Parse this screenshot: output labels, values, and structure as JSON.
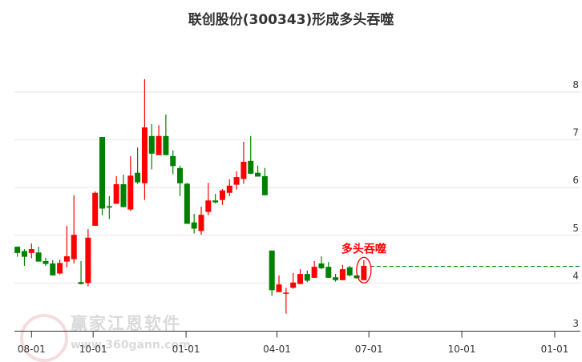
{
  "title": "联创股份(300343)形成多头吞噬",
  "annotation": "多头吞噬",
  "watermark": {
    "name": "赢家江恩软件",
    "url": "www.360gann.com",
    "seal": "江赢恩家"
  },
  "colors": {
    "up": "#ff0000",
    "down": "#008000",
    "grid": "#e6e6e6",
    "axis": "#333333",
    "signal_line": "#008000",
    "annotation": "#ff0000"
  },
  "chart_data": {
    "type": "candlestick",
    "title": "联创股份(300343)形成多头吞噬",
    "interval": "weekly",
    "y_axis": {
      "position": "right",
      "ticks": [
        3,
        4,
        5,
        6,
        7,
        8
      ],
      "ylim": [
        3,
        8.4
      ]
    },
    "x_ticks": [
      "08-01",
      "10-01",
      "01-01",
      "04-01",
      "07-01",
      "10-01",
      "01-01"
    ],
    "grid": true,
    "signal": {
      "label": "多头吞噬",
      "date": "06-26",
      "level": 4.35,
      "marker": "ellipse",
      "line": "dashed"
    },
    "candles": [
      [
        "07-18",
        4.76,
        4.77,
        4.55,
        4.63
      ],
      [
        "07-25",
        4.67,
        4.71,
        4.36,
        4.55
      ],
      [
        "08-01",
        4.63,
        4.83,
        4.52,
        4.71
      ],
      [
        "08-08",
        4.64,
        4.76,
        4.45,
        4.45
      ],
      [
        "08-15",
        4.46,
        4.53,
        4.36,
        4.4
      ],
      [
        "08-22",
        4.41,
        4.48,
        4.16,
        4.16
      ],
      [
        "08-29",
        4.2,
        4.49,
        4.18,
        4.42
      ],
      [
        "09-05",
        4.45,
        5.2,
        4.33,
        4.56
      ],
      [
        "09-12",
        4.5,
        5.84,
        4.41,
        5.01
      ],
      [
        "09-19",
        4.02,
        4.46,
        3.97,
        3.98
      ],
      [
        "09-26",
        4.0,
        5.13,
        3.93,
        4.95
      ],
      [
        "10-03",
        5.2,
        5.92,
        5.2,
        5.89
      ],
      [
        "10-10",
        7.06,
        7.06,
        5.42,
        5.56
      ],
      [
        "10-17",
        5.61,
        5.82,
        5.34,
        5.58
      ],
      [
        "10-24",
        5.66,
        6.24,
        5.66,
        6.07
      ],
      [
        "10-31",
        6.07,
        6.27,
        5.59,
        5.59
      ],
      [
        "11-07",
        5.54,
        6.66,
        5.51,
        6.25
      ],
      [
        "11-14",
        6.31,
        6.84,
        6.08,
        6.11
      ],
      [
        "11-21",
        6.09,
        8.27,
        5.74,
        7.26
      ],
      [
        "11-28",
        7.08,
        7.33,
        6.38,
        6.71
      ],
      [
        "12-05",
        6.68,
        7.31,
        6.68,
        7.08
      ],
      [
        "12-12",
        7.08,
        7.53,
        6.68,
        6.68
      ],
      [
        "12-19",
        6.66,
        6.78,
        6.28,
        6.45
      ],
      [
        "12-26",
        6.41,
        6.46,
        5.82,
        6.09
      ],
      [
        "01-02",
        6.08,
        6.1,
        5.24,
        5.24
      ],
      [
        "01-09",
        5.27,
        5.45,
        5.04,
        5.14
      ],
      [
        "01-16",
        5.09,
        5.6,
        5.01,
        5.43
      ],
      [
        "01-23",
        5.49,
        6.1,
        5.42,
        5.73
      ],
      [
        "01-30",
        5.73,
        5.87,
        5.67,
        5.69
      ],
      [
        "02-06",
        5.74,
        5.97,
        5.64,
        5.94
      ],
      [
        "02-13",
        5.89,
        6.17,
        5.82,
        6.04
      ],
      [
        "02-20",
        6.06,
        6.34,
        5.96,
        6.22
      ],
      [
        "02-27",
        6.18,
        6.96,
        6.08,
        6.54
      ],
      [
        "03-06",
        6.56,
        7.08,
        6.28,
        6.29
      ],
      [
        "03-13",
        6.31,
        6.46,
        6.23,
        6.23
      ],
      [
        "03-20",
        6.24,
        6.41,
        5.84,
        5.84
      ],
      [
        "03-27",
        4.68,
        4.68,
        3.73,
        3.85
      ],
      [
        "04-03",
        3.81,
        4.16,
        3.81,
        3.97
      ],
      [
        "04-10",
        3.79,
        3.9,
        3.36,
        3.8
      ],
      [
        "04-17",
        3.9,
        4.21,
        3.88,
        4.01
      ],
      [
        "04-24",
        3.98,
        4.29,
        3.98,
        4.19
      ],
      [
        "05-01",
        4.19,
        4.26,
        4.02,
        4.05
      ],
      [
        "05-08",
        4.11,
        4.46,
        4.11,
        4.34
      ],
      [
        "05-15",
        4.41,
        4.56,
        4.29,
        4.31
      ],
      [
        "05-22",
        4.34,
        4.44,
        4.11,
        4.11
      ],
      [
        "05-29",
        4.12,
        4.19,
        4.03,
        4.06
      ],
      [
        "06-05",
        4.06,
        4.38,
        4.06,
        4.29
      ],
      [
        "06-12",
        4.33,
        4.36,
        4.14,
        4.16
      ],
      [
        "06-19",
        4.16,
        4.16,
        4.1,
        4.1
      ],
      [
        "06-26",
        4.06,
        4.48,
        4.06,
        4.36
      ]
    ]
  }
}
